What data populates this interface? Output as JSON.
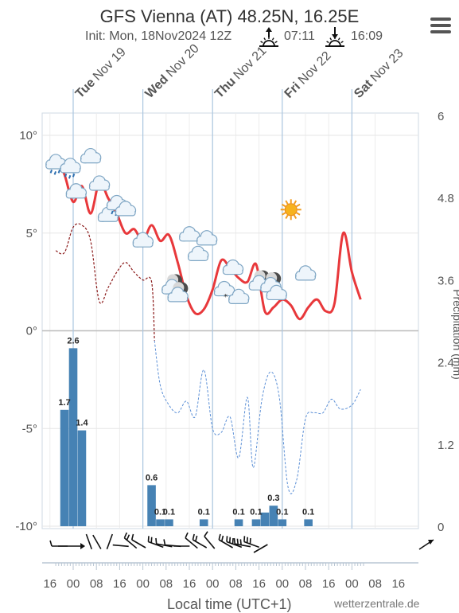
{
  "header": {
    "title": "GFS Vienna (AT) 48.25N, 16.25E",
    "init": "Init: Mon, 18Nov2024 12Z",
    "sunrise": "07:11",
    "sunset": "16:09",
    "menu_icon": "hamburger-menu-icon"
  },
  "chart_data": {
    "type": "line",
    "x_axis": {
      "label": "Local time (UTC+1)",
      "hour_ticks": [
        "16",
        "00",
        "08",
        "16",
        "00",
        "08",
        "16",
        "00",
        "08",
        "16",
        "00",
        "08",
        "16",
        "00",
        "08",
        "16"
      ],
      "day_labels": [
        {
          "bold": "Tue",
          "rest": "Nov 19"
        },
        {
          "bold": "Wed",
          "rest": "Nov 20"
        },
        {
          "bold": "Thu",
          "rest": "Nov 21"
        },
        {
          "bold": "Fri",
          "rest": "Nov 22"
        },
        {
          "bold": "Sat",
          "rest": "Nov 23"
        }
      ]
    },
    "y_axis_left": {
      "ticks": [
        "10°",
        "5°",
        "0°",
        "-5°",
        "-10°"
      ],
      "min": -10,
      "max": 10
    },
    "y_axis_right": {
      "ticks": [
        "6",
        "4.8",
        "3.6",
        "2.4",
        "1.2",
        "0"
      ],
      "min": 0,
      "max": 6,
      "label": "Precipitation (mm)"
    },
    "temperature": {
      "color": "#e8383b",
      "points": [
        [
          -6,
          9
        ],
        [
          -3,
          8
        ],
        [
          0,
          6.6
        ],
        [
          3,
          7.4
        ],
        [
          6,
          6
        ],
        [
          9,
          7.6
        ],
        [
          12,
          6.8
        ],
        [
          15,
          6
        ],
        [
          18,
          5
        ],
        [
          21,
          5.2
        ],
        [
          24,
          4.6
        ],
        [
          27,
          5.4
        ],
        [
          30,
          4.6
        ],
        [
          33,
          4.9
        ],
        [
          36,
          3.5
        ],
        [
          39,
          1.8
        ],
        [
          42,
          0.9
        ],
        [
          45,
          1.1
        ],
        [
          48,
          2.1
        ],
        [
          51,
          3.6
        ],
        [
          54,
          3.2
        ],
        [
          57,
          2.7
        ],
        [
          60,
          2.5
        ],
        [
          63,
          3.4
        ],
        [
          66,
          1
        ],
        [
          69,
          1.2
        ],
        [
          72,
          1.6
        ],
        [
          75,
          1.3
        ],
        [
          78,
          0.6
        ],
        [
          81,
          1.2
        ],
        [
          84,
          1.6
        ],
        [
          87,
          1
        ],
        [
          90,
          1.4
        ],
        [
          93,
          5
        ],
        [
          96,
          3
        ],
        [
          99,
          1.6
        ]
      ]
    },
    "dewpoint": {
      "color": "#8b1a1a",
      "points": [
        [
          -6,
          4.1
        ],
        [
          -3,
          4
        ],
        [
          0,
          5.3
        ],
        [
          3,
          5.4
        ],
        [
          6,
          4.6
        ],
        [
          9,
          1.5
        ],
        [
          12,
          2.2
        ],
        [
          15,
          3
        ],
        [
          18,
          3.5
        ],
        [
          21,
          3
        ],
        [
          24,
          2.6
        ],
        [
          27,
          2.5
        ],
        [
          28,
          -0.5
        ],
        [
          30,
          -2.8
        ],
        [
          33,
          -3.8
        ],
        [
          36,
          -4.2
        ],
        [
          39,
          -3.6
        ],
        [
          42,
          -4.4
        ],
        [
          45,
          -2
        ],
        [
          48,
          -5
        ],
        [
          51,
          -5.2
        ],
        [
          54,
          -4.4
        ],
        [
          57,
          -6.5
        ],
        [
          60,
          -3.4
        ],
        [
          62,
          -7
        ],
        [
          65,
          -3.5
        ],
        [
          68,
          -2.1
        ],
        [
          71,
          -3.4
        ],
        [
          74,
          -8
        ],
        [
          77,
          -7.6
        ],
        [
          80,
          -4.5
        ],
        [
          83,
          -4.2
        ],
        [
          86,
          -4.2
        ],
        [
          89,
          -3.5
        ],
        [
          92,
          -4
        ],
        [
          96,
          -3.8
        ],
        [
          99,
          -3
        ]
      ]
    },
    "precipitation": {
      "color": "#4682b4",
      "bars": [
        {
          "t": -3,
          "v": 1.7,
          "label": "1.7"
        },
        {
          "t": 0,
          "v": 2.6,
          "label": "2.6"
        },
        {
          "t": 3,
          "v": 1.4,
          "label": "1.4"
        },
        {
          "t": 27,
          "v": 0.6,
          "label": "0.6"
        },
        {
          "t": 30,
          "v": 0.1,
          "label": "0.1"
        },
        {
          "t": 33,
          "v": 0.1,
          "label": "0.1"
        },
        {
          "t": 45,
          "v": 0.1,
          "label": "0.1"
        },
        {
          "t": 57,
          "v": 0.1,
          "label": "0.1"
        },
        {
          "t": 63,
          "v": 0.1,
          "label": "0.1"
        },
        {
          "t": 66,
          "v": 0.2,
          "label": ""
        },
        {
          "t": 69,
          "v": 0.3,
          "label": "0.3"
        },
        {
          "t": 72,
          "v": 0.1,
          "label": "0.1"
        },
        {
          "t": 81,
          "v": 0.1,
          "label": "0.1"
        }
      ]
    },
    "weather_icons": [
      {
        "t": -6,
        "v": 8.6,
        "kind": "rain"
      },
      {
        "t": -1,
        "v": 8.4,
        "kind": "rain"
      },
      {
        "t": 1,
        "v": 7.1,
        "kind": "cloud"
      },
      {
        "t": 6,
        "v": 8.9,
        "kind": "cloud"
      },
      {
        "t": 9,
        "v": 7.5,
        "kind": "cloud"
      },
      {
        "t": 12,
        "v": 5.9,
        "kind": "cloud"
      },
      {
        "t": 15,
        "v": 6.5,
        "kind": "rain"
      },
      {
        "t": 18,
        "v": 6.2,
        "kind": "cloud"
      },
      {
        "t": 24,
        "v": 4.6,
        "kind": "cloud"
      },
      {
        "t": 34,
        "v": 2.2,
        "kind": "night"
      },
      {
        "t": 36,
        "v": 1.8,
        "kind": "night"
      },
      {
        "t": 40,
        "v": 4.9,
        "kind": "cloud"
      },
      {
        "t": 43,
        "v": 3.9,
        "kind": "cloud"
      },
      {
        "t": 46,
        "v": 4.7,
        "kind": "cloud"
      },
      {
        "t": 52,
        "v": 2.1,
        "kind": "snow"
      },
      {
        "t": 55,
        "v": 3.2,
        "kind": "cloud"
      },
      {
        "t": 57,
        "v": 1.7,
        "kind": "cloud"
      },
      {
        "t": 64,
        "v": 2.4,
        "kind": "night"
      },
      {
        "t": 68,
        "v": 2.3,
        "kind": "night"
      },
      {
        "t": 70,
        "v": 1.9,
        "kind": "cloud"
      },
      {
        "t": 75,
        "v": 6.2,
        "kind": "sun"
      },
      {
        "t": 80,
        "v": 2.9,
        "kind": "cloud"
      }
    ],
    "wind_barbs": [
      {
        "t": -3,
        "dir": 270,
        "ticks": 1
      },
      {
        "t": 6,
        "dir": 340,
        "ticks": 0
      },
      {
        "t": 9,
        "dir": 330,
        "ticks": 0
      },
      {
        "t": 12,
        "dir": 20,
        "ticks": 0
      },
      {
        "t": 18,
        "dir": 275,
        "ticks": 0
      },
      {
        "t": 21,
        "dir": 310,
        "ticks": 2
      },
      {
        "t": 24,
        "dir": 300,
        "ticks": 1
      },
      {
        "t": 30,
        "dir": 290,
        "ticks": 2
      },
      {
        "t": 33,
        "dir": 280,
        "ticks": 1
      },
      {
        "t": 36,
        "dir": 275,
        "ticks": 1
      },
      {
        "t": 39,
        "dir": 270,
        "ticks": 0
      },
      {
        "t": 42,
        "dir": 310,
        "ticks": 1
      },
      {
        "t": 45,
        "dir": 300,
        "ticks": 2
      },
      {
        "t": 48,
        "dir": 320,
        "ticks": 1
      },
      {
        "t": 54,
        "dir": 300,
        "ticks": 2
      },
      {
        "t": 57,
        "dir": 290,
        "ticks": 3
      },
      {
        "t": 60,
        "dir": 280,
        "ticks": 3
      },
      {
        "t": 63,
        "dir": 290,
        "ticks": 3
      },
      {
        "t": 66,
        "dir": 240,
        "ticks": 0
      }
    ]
  },
  "footer": {
    "credit": "wetterzentrale.de"
  }
}
